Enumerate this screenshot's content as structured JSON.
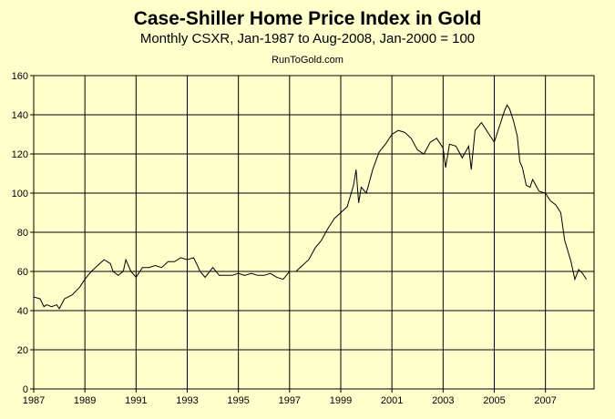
{
  "chart_data": {
    "type": "line",
    "title": "Case-Shiller Home Price Index in Gold",
    "subtitle": "Monthly CSXR, Jan-1987 to Aug-2008, Jan-2000 = 100",
    "source": "RunToGold.com",
    "xlabel": "",
    "ylabel": "",
    "xlim": [
      1987,
      2008.9
    ],
    "ylim": [
      0,
      160
    ],
    "x_ticks": [
      "1987",
      "1989",
      "1991",
      "1993",
      "1995",
      "1997",
      "1999",
      "2001",
      "2003",
      "2005",
      "2007"
    ],
    "y_ticks": [
      "0",
      "20",
      "40",
      "60",
      "80",
      "100",
      "120",
      "140",
      "160"
    ],
    "grid": true,
    "legend": "none",
    "line_color": "#000000",
    "background_color": "#FFFFCC",
    "series": [
      {
        "x": [
          1987.0,
          1987.25,
          1987.4,
          1987.5,
          1987.7,
          1987.9,
          1988.0,
          1988.2,
          1988.5,
          1988.8,
          1989.0,
          1989.25,
          1989.5,
          1989.75,
          1990.0,
          1990.1,
          1990.3,
          1990.5,
          1990.6,
          1990.8,
          1991.0,
          1991.25,
          1991.5,
          1991.75,
          1992.0,
          1992.25,
          1992.5,
          1992.75,
          1993.0,
          1993.25,
          1993.4,
          1993.5,
          1993.7,
          1994.0,
          1994.25,
          1994.5,
          1994.75,
          1995.0,
          1995.25,
          1995.5,
          1995.75,
          1996.0,
          1996.25,
          1996.5,
          1996.75,
          1997.0,
          1997.25,
          1997.5,
          1997.75,
          1998.0,
          1998.25,
          1998.5,
          1998.75,
          1999.0,
          1999.25,
          1999.5,
          1999.6,
          1999.7,
          1999.8,
          2000.0,
          2000.25,
          2000.5,
          2000.75,
          2001.0,
          2001.25,
          2001.5,
          2001.75,
          2002.0,
          2002.25,
          2002.5,
          2002.75,
          2003.0,
          2003.1,
          2003.25,
          2003.5,
          2003.75,
          2004.0,
          2004.1,
          2004.25,
          2004.5,
          2004.75,
          2005.0,
          2005.25,
          2005.4,
          2005.5,
          2005.6,
          2005.75,
          2005.9,
          2006.0,
          2006.1,
          2006.25,
          2006.4,
          2006.5,
          2006.75,
          2007.0,
          2007.2,
          2007.4,
          2007.6,
          2007.75,
          2008.0,
          2008.15,
          2008.3,
          2008.45,
          2008.6
        ],
        "values": [
          47,
          46,
          42,
          43,
          42,
          43,
          41,
          46,
          48,
          52,
          56,
          60,
          63,
          66,
          64,
          60,
          58,
          60,
          66,
          60,
          57,
          62,
          62,
          63,
          62,
          65,
          65,
          67,
          66,
          67,
          63,
          60,
          57,
          62,
          58,
          58,
          58,
          59,
          58,
          59,
          58,
          58,
          59,
          57,
          56,
          60,
          60,
          63,
          66,
          72,
          76,
          82,
          87,
          90,
          93,
          104,
          112,
          95,
          103,
          100,
          112,
          121,
          125,
          130,
          132,
          131,
          128,
          122,
          120,
          126,
          128,
          123,
          113,
          125,
          124,
          118,
          124,
          112,
          132,
          136,
          131,
          126,
          136,
          142,
          145,
          143,
          137,
          129,
          116,
          113,
          104,
          103,
          107,
          101,
          100,
          96,
          94,
          90,
          76,
          65,
          56,
          61,
          59,
          56
        ]
      }
    ]
  }
}
